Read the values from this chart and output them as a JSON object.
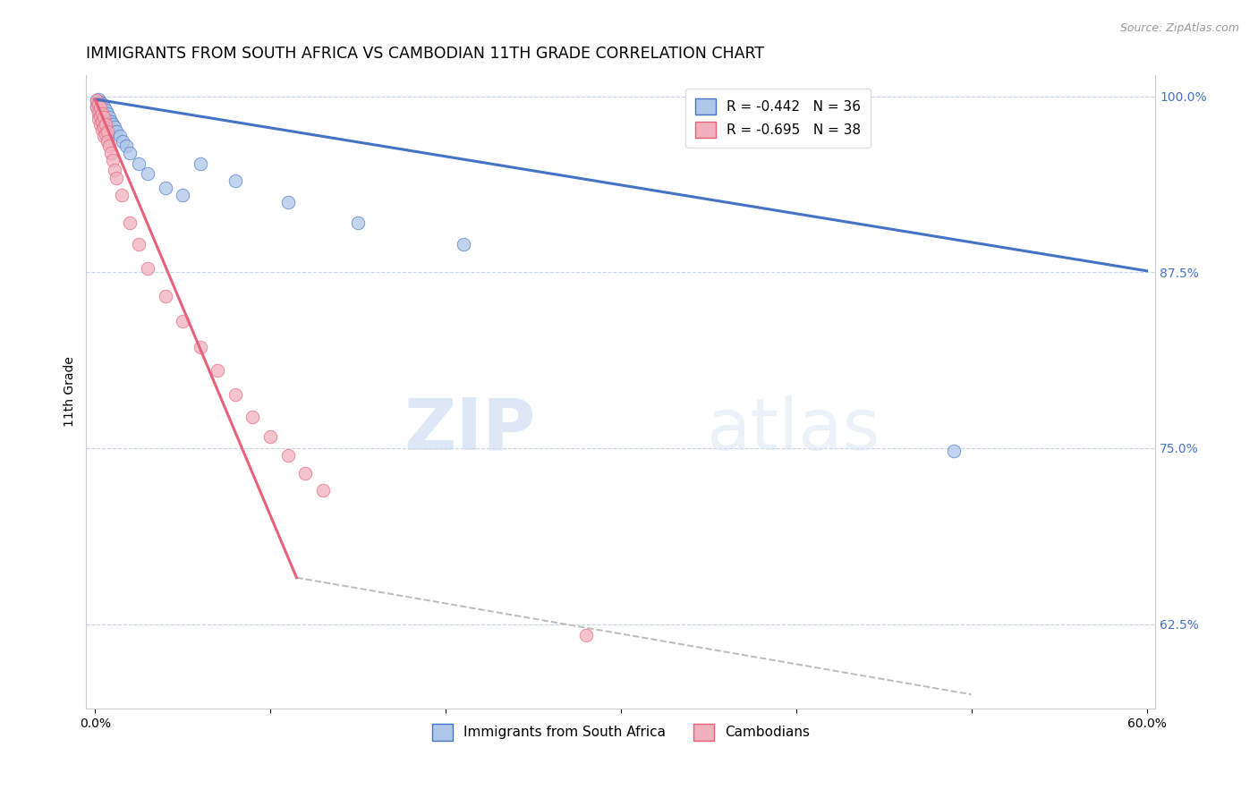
{
  "title": "IMMIGRANTS FROM SOUTH AFRICA VS CAMBODIAN 11TH GRADE CORRELATION CHART",
  "source": "Source: ZipAtlas.com",
  "ylabel": "11th Grade",
  "watermark_zip": "ZIP",
  "watermark_atlas": "atlas",
  "legend_entries": [
    {
      "label": "R = -0.442   N = 36"
    },
    {
      "label": "R = -0.695   N = 38"
    }
  ],
  "legend_labels_bottom": [
    "Immigrants from South Africa",
    "Cambodians"
  ],
  "xlim": [
    -0.005,
    0.605
  ],
  "ylim": [
    0.565,
    1.015
  ],
  "xticks": [
    0.0,
    0.1,
    0.2,
    0.3,
    0.4,
    0.5,
    0.6
  ],
  "xticklabels": [
    "0.0%",
    "",
    "",
    "",
    "",
    "",
    "60.0%"
  ],
  "ytick_positions": [
    0.625,
    0.75,
    0.875,
    1.0
  ],
  "ytick_labels": [
    "62.5%",
    "75.0%",
    "87.5%",
    "100.0%"
  ],
  "blue_scatter": {
    "x": [
      0.001,
      0.001,
      0.002,
      0.002,
      0.002,
      0.003,
      0.003,
      0.003,
      0.004,
      0.004,
      0.004,
      0.005,
      0.005,
      0.006,
      0.006,
      0.007,
      0.007,
      0.008,
      0.009,
      0.01,
      0.011,
      0.012,
      0.014,
      0.016,
      0.018,
      0.02,
      0.025,
      0.03,
      0.04,
      0.05,
      0.06,
      0.08,
      0.11,
      0.15,
      0.21,
      0.49
    ],
    "y": [
      0.997,
      0.993,
      0.998,
      0.995,
      0.99,
      0.996,
      0.993,
      0.988,
      0.995,
      0.991,
      0.986,
      0.993,
      0.988,
      0.99,
      0.985,
      0.988,
      0.983,
      0.985,
      0.982,
      0.98,
      0.978,
      0.975,
      0.972,
      0.968,
      0.965,
      0.96,
      0.952,
      0.945,
      0.935,
      0.93,
      0.952,
      0.94,
      0.925,
      0.91,
      0.895,
      0.748
    ]
  },
  "pink_scatter": {
    "x": [
      0.001,
      0.001,
      0.002,
      0.002,
      0.002,
      0.003,
      0.003,
      0.003,
      0.004,
      0.004,
      0.004,
      0.005,
      0.005,
      0.005,
      0.006,
      0.006,
      0.007,
      0.007,
      0.008,
      0.009,
      0.01,
      0.011,
      0.012,
      0.015,
      0.02,
      0.025,
      0.03,
      0.04,
      0.05,
      0.06,
      0.07,
      0.08,
      0.09,
      0.1,
      0.11,
      0.12,
      0.13,
      0.28
    ],
    "y": [
      0.997,
      0.992,
      0.995,
      0.988,
      0.984,
      0.992,
      0.986,
      0.98,
      0.988,
      0.982,
      0.976,
      0.985,
      0.978,
      0.972,
      0.98,
      0.973,
      0.975,
      0.968,
      0.965,
      0.96,
      0.955,
      0.948,
      0.942,
      0.93,
      0.91,
      0.895,
      0.878,
      0.858,
      0.84,
      0.822,
      0.805,
      0.788,
      0.772,
      0.758,
      0.745,
      0.732,
      0.72,
      0.617
    ]
  },
  "blue_line": {
    "x": [
      0.0,
      0.6
    ],
    "y": [
      0.998,
      0.876
    ]
  },
  "pink_line": {
    "x": [
      0.0,
      0.115
    ],
    "y": [
      0.998,
      0.658
    ]
  },
  "pink_line_ext": {
    "x": [
      0.115,
      0.5
    ],
    "y": [
      0.658,
      0.575
    ]
  },
  "blue_color": "#4472c4",
  "blue_scatter_color": "#aec6e8",
  "pink_color": "#e8607a",
  "pink_scatter_color": "#f0b0bc",
  "grid_color": "#c8d4e8",
  "background_color": "#ffffff",
  "title_fontsize": 12.5,
  "axis_label_fontsize": 10,
  "tick_fontsize": 10,
  "marker_size": 110
}
